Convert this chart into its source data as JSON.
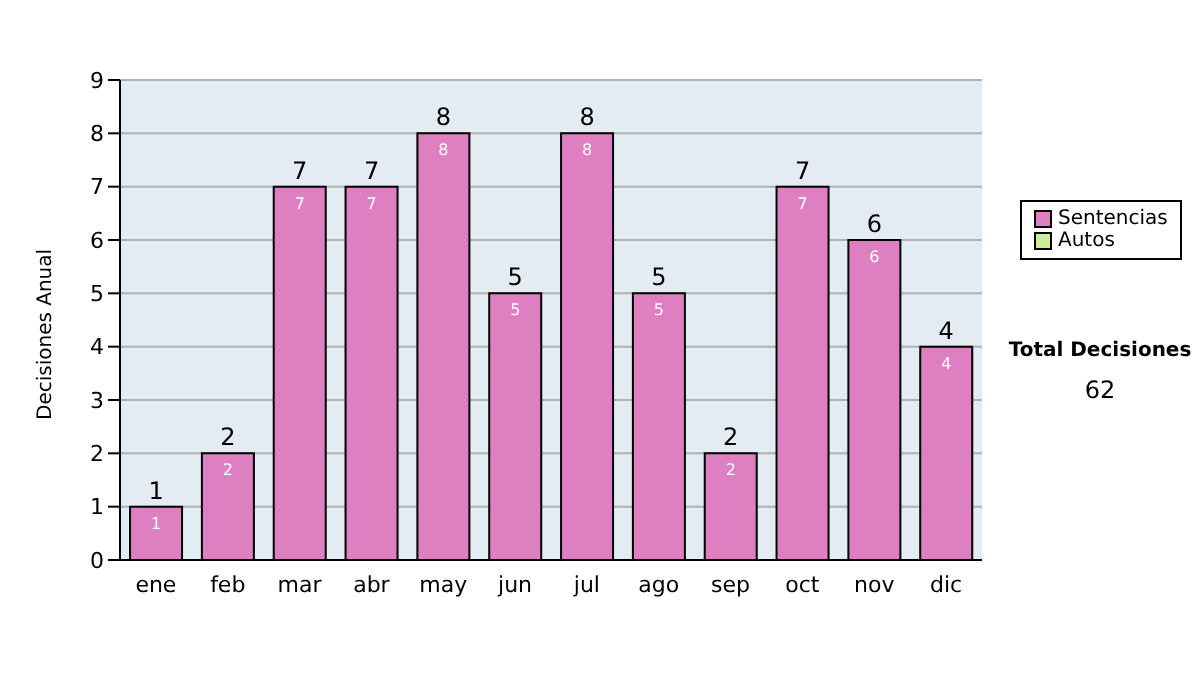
{
  "chart_data": {
    "type": "bar",
    "ylabel": "Decisiones Anual",
    "categories": [
      "ene",
      "feb",
      "mar",
      "abr",
      "may",
      "jun",
      "jul",
      "ago",
      "sep",
      "oct",
      "nov",
      "dic"
    ],
    "series": [
      {
        "name": "Sentencias",
        "color": "#dd7fc0",
        "values": [
          1,
          2,
          7,
          7,
          8,
          5,
          8,
          5,
          2,
          7,
          6,
          4
        ],
        "value_labels": [
          "1",
          "2",
          "7",
          "7",
          "8",
          "5",
          "8",
          "5",
          "2",
          "7",
          "6",
          "4"
        ]
      },
      {
        "name": "Autos",
        "color": "#ccee99",
        "values": [
          0,
          0,
          0,
          0,
          0,
          0,
          0,
          0,
          0,
          0,
          0,
          0
        ]
      }
    ],
    "stacked": true,
    "totals": [
      "1",
      "2",
      "7",
      "7",
      "8",
      "5",
      "8",
      "5",
      "2",
      "7",
      "6",
      "4"
    ],
    "ylim": [
      0,
      9
    ],
    "yticks": [
      0,
      1,
      2,
      3,
      4,
      5,
      6,
      7,
      8,
      9
    ],
    "grid": "y",
    "legend": "right",
    "annotations": [
      "Total Decisiones",
      "62"
    ]
  }
}
